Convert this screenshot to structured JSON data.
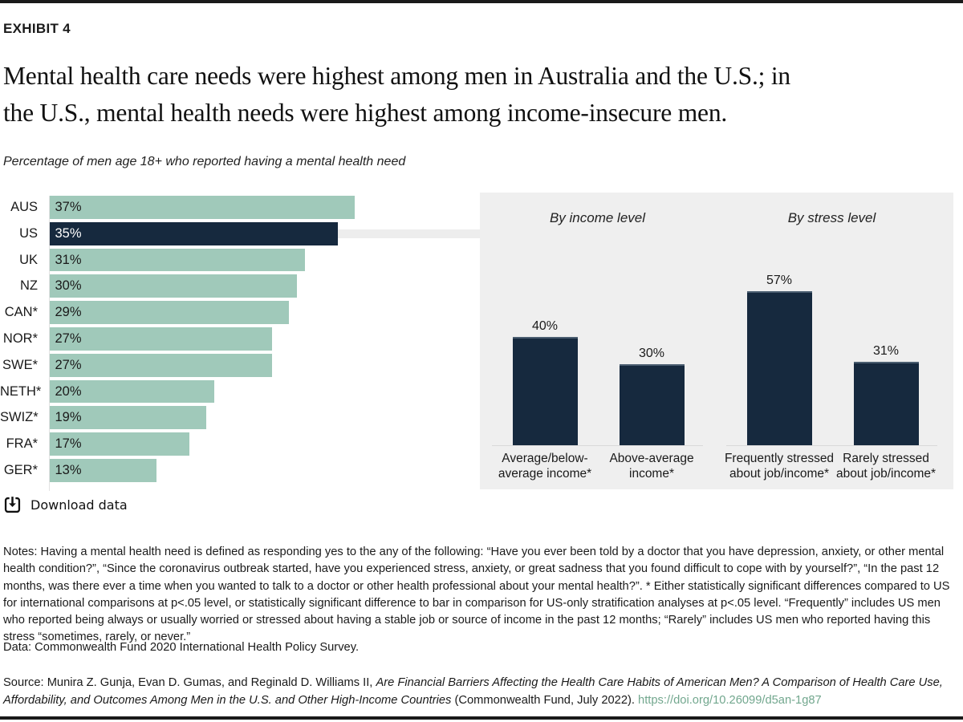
{
  "exhibit_label": "EXHIBIT 4",
  "title": {
    "line1": "Mental health care needs were highest among men in Australia and the U.S.; in",
    "line2": "the U.S., mental health needs were highest among income-insecure men."
  },
  "subtitle": "Percentage of men age 18+ who reported having a mental health need",
  "chart_data": [
    {
      "type": "bar",
      "orientation": "horizontal",
      "title": "Percentage of men age 18+ who reported having a mental health need",
      "categories": [
        "AUS",
        "US",
        "UK",
        "NZ",
        "CAN*",
        "NOR*",
        "SWE*",
        "NETH*",
        "SWIZ*",
        "FRA*",
        "GER*"
      ],
      "values": [
        37,
        35,
        31,
        30,
        29,
        27,
        27,
        20,
        19,
        17,
        13
      ],
      "value_suffix": "%",
      "highlight_category": "US",
      "bar_color": "#a0c9ba",
      "highlight_color": "#16293e",
      "xlim": [
        0,
        40
      ],
      "grid": false
    },
    {
      "type": "bar",
      "orientation": "vertical",
      "note": "US-only stratification panel",
      "groups": [
        {
          "title": "By income level",
          "categories": [
            "Average/below-average income*",
            "Above-average income*"
          ],
          "category_lines": [
            [
              "Average/below-",
              "average income*"
            ],
            [
              "Above-average",
              "income*"
            ]
          ],
          "values": [
            40,
            30
          ]
        },
        {
          "title": "By stress level",
          "categories": [
            "Frequently stressed about job/income*",
            "Rarely stressed about job/income*"
          ],
          "category_lines": [
            [
              "Frequently stressed",
              "about job/income*"
            ],
            [
              "Rarely stressed",
              "about job/income*"
            ]
          ],
          "values": [
            57,
            31
          ]
        }
      ],
      "value_suffix": "%",
      "bar_color": "#16293e",
      "ylim": [
        0,
        60
      ],
      "grid": false
    }
  ],
  "download": {
    "label": "Download data"
  },
  "notes": "Notes: Having a mental health need is defined as responding yes to the any of the following: “Have you ever been told by a doctor that you have depression, anxiety, or other mental health condition?”, “Since the coronavirus outbreak started, have you experienced stress, anxiety, or great sadness that you found difficult to cope with by yourself?”, “In the past 12 months, was there ever a time when you wanted to talk to a doctor or other health professional about your mental health?”. * Either statistically significant differences compared to US for international comparisons at p<.05 level, or statistically significant difference to bar in comparison for US-only stratification analyses at p<.05 level. “Frequently” includes US men who reported being always or usually worried or stressed about having a stable job or source of income in the past 12 months; “Rarely” includes US men who reported having this stress “sometimes, rarely, or never.”",
  "data_line": "Data: Commonwealth Fund 2020 International Health Policy Survey.",
  "source": {
    "prefix": "Source: Munira Z. Gunja, Evan D. Gumas, and Reginald D. Williams II, ",
    "italic_title": "Are Financial Barriers Affecting the Health Care Habits of American Men? A Comparison of Health Care Use, Affordability, and Outcomes Among Men in the U.S. and Other High-Income Countries",
    "suffix": " (Commonwealth Fund, July 2022). ",
    "link": "https://doi.org/10.26099/d5an-1g87"
  },
  "colors": {
    "bar_green": "#a0c9ba",
    "bar_navy": "#16293e",
    "panel_gray": "#efefef",
    "connector_gray": "#ededed",
    "baseline_gray": "#d9d9d9",
    "text": "#1a1a1a",
    "link_green": "#72a78e",
    "rule_black": "#1a1a1a"
  }
}
